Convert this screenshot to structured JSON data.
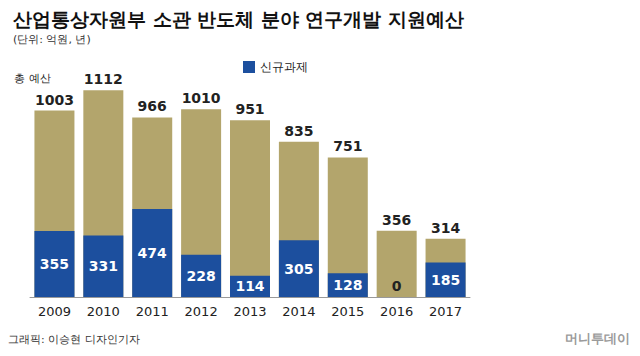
{
  "chart_data": {
    "type": "bar",
    "title": "산업통상자원부 소관 반도체 분야 연구개발 지원예산",
    "subtitle": "(단위: 억원, 년)",
    "categories": [
      "2009",
      "2010",
      "2011",
      "2012",
      "2013",
      "2014",
      "2015",
      "2016",
      "2017"
    ],
    "series": [
      {
        "values": [
          1003,
          1112,
          966,
          1010,
          951,
          835,
          751,
          356,
          314
        ],
        "color": "#b3a56c"
      },
      {
        "name": "신규과제",
        "values": [
          355,
          331,
          474,
          228,
          114,
          305,
          128,
          0,
          185
        ],
        "color": "#1c4f9e"
      }
    ],
    "annotations": [
      "총 예산"
    ],
    "ylim": [
      0,
      1200
    ],
    "yticks": [
      0,
      1200
    ],
    "grid": false,
    "stacked": false,
    "data_labels": true,
    "tick_labels": "x",
    "legend": "top",
    "credit": "그래픽: 이승현 디자인기자",
    "source": "머니투데이"
  }
}
